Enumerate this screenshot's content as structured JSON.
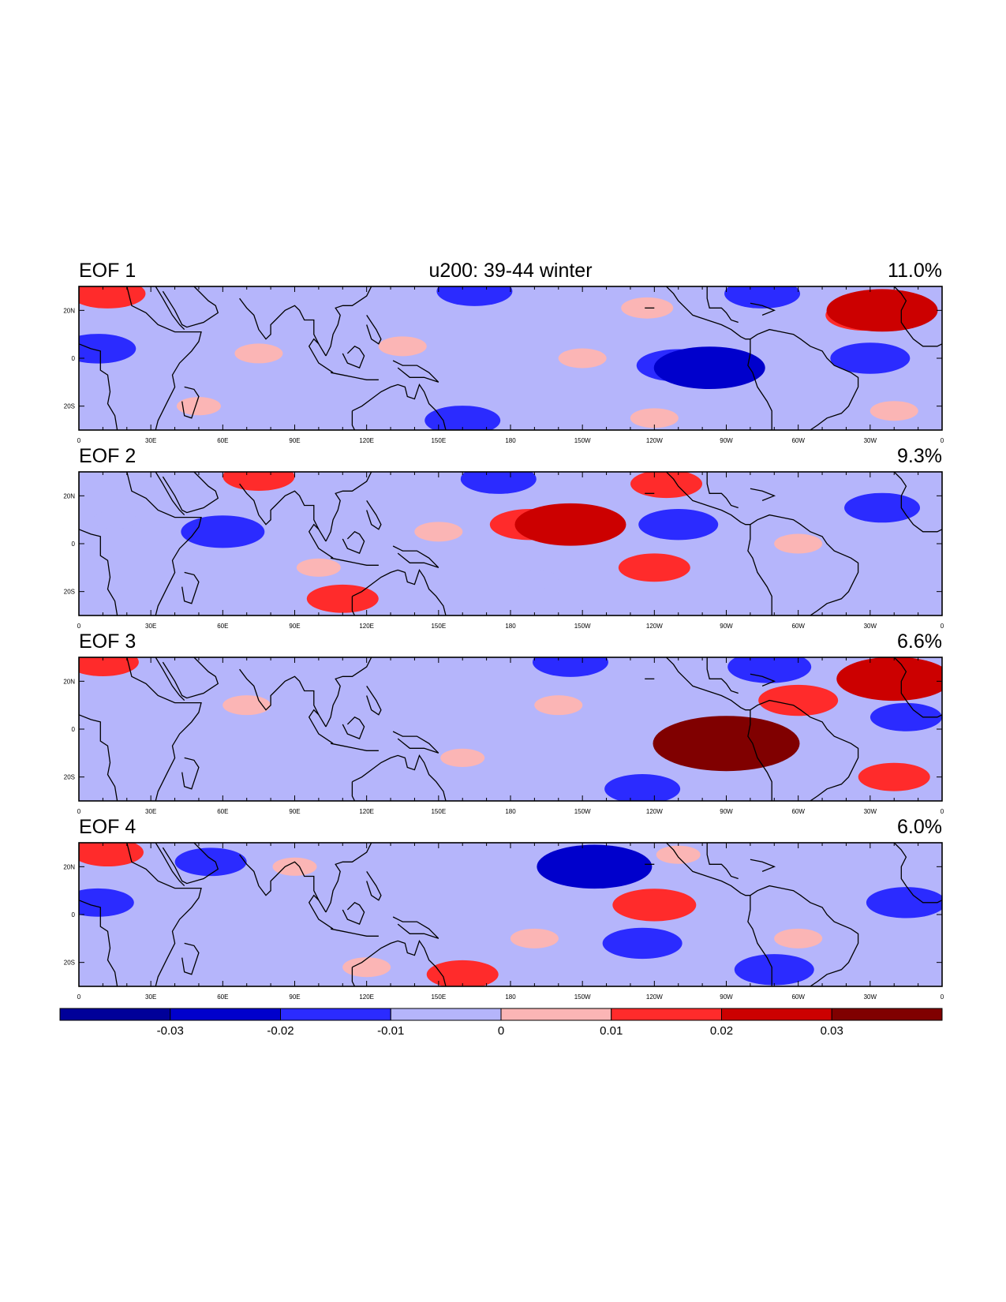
{
  "chart_data": {
    "type": "heatmap",
    "title": "u200: 39-44 winter",
    "panels": [
      {
        "label": "EOF 1",
        "variance": "11.0%",
        "anomalies": [
          {
            "lon": 12,
            "lat": 27,
            "value": 0.012
          },
          {
            "lon": 8,
            "lat": 4,
            "value": -0.012
          },
          {
            "lon": 75,
            "lat": 2,
            "value": 0.005
          },
          {
            "lon": 135,
            "lat": 5,
            "value": 0.005
          },
          {
            "lon": 165,
            "lat": 28,
            "value": -0.012
          },
          {
            "lon": 210,
            "lat": 0,
            "value": 0.005
          },
          {
            "lon": 250,
            "lat": -3,
            "value": -0.014
          },
          {
            "lon": 263,
            "lat": -4,
            "value": -0.021
          },
          {
            "lon": 237,
            "lat": 21,
            "value": 0.006
          },
          {
            "lon": 285,
            "lat": 27,
            "value": -0.012
          },
          {
            "lon": 328,
            "lat": 18,
            "value": 0.013
          },
          {
            "lon": 335,
            "lat": 20,
            "value": 0.021
          },
          {
            "lon": 330,
            "lat": 0,
            "value": -0.013
          },
          {
            "lon": 160,
            "lat": -26,
            "value": -0.012
          },
          {
            "lon": 240,
            "lat": -25,
            "value": 0.005
          },
          {
            "lon": 340,
            "lat": -22,
            "value": 0.005
          },
          {
            "lon": 50,
            "lat": -20,
            "value": 0.004
          }
        ]
      },
      {
        "label": "EOF 2",
        "variance": "9.3%",
        "anomalies": [
          {
            "lon": 60,
            "lat": 5,
            "value": -0.014
          },
          {
            "lon": 75,
            "lat": 28,
            "value": 0.011
          },
          {
            "lon": 110,
            "lat": -23,
            "value": 0.011
          },
          {
            "lon": 188,
            "lat": 8,
            "value": 0.013
          },
          {
            "lon": 205,
            "lat": 8,
            "value": 0.021
          },
          {
            "lon": 240,
            "lat": -10,
            "value": 0.011
          },
          {
            "lon": 245,
            "lat": 25,
            "value": 0.011
          },
          {
            "lon": 250,
            "lat": 8,
            "value": -0.013
          },
          {
            "lon": 175,
            "lat": 27,
            "value": -0.012
          },
          {
            "lon": 335,
            "lat": 15,
            "value": -0.012
          },
          {
            "lon": 150,
            "lat": 5,
            "value": 0.005
          },
          {
            "lon": 300,
            "lat": 0,
            "value": 0.005
          },
          {
            "lon": 100,
            "lat": -10,
            "value": 0.004
          },
          {
            "lon": 15,
            "lat": 10,
            "value": -0.004
          },
          {
            "lon": 190,
            "lat": -15,
            "value": -0.005
          }
        ]
      },
      {
        "label": "EOF 3",
        "variance": "6.6%",
        "anomalies": [
          {
            "lon": 10,
            "lat": 28,
            "value": 0.011
          },
          {
            "lon": 205,
            "lat": 28,
            "value": -0.012
          },
          {
            "lon": 288,
            "lat": 26,
            "value": -0.014
          },
          {
            "lon": 265,
            "lat": -3,
            "value": 0.014
          },
          {
            "lon": 268,
            "lat": -5,
            "value": 0.024
          },
          {
            "lon": 270,
            "lat": -6,
            "value": 0.03
          },
          {
            "lon": 300,
            "lat": 12,
            "value": 0.013
          },
          {
            "lon": 335,
            "lat": 20,
            "value": 0.014
          },
          {
            "lon": 340,
            "lat": 21,
            "value": 0.022
          },
          {
            "lon": 345,
            "lat": 5,
            "value": -0.011
          },
          {
            "lon": 340,
            "lat": -20,
            "value": 0.011
          },
          {
            "lon": 235,
            "lat": -25,
            "value": -0.012
          },
          {
            "lon": 200,
            "lat": 10,
            "value": 0.005
          },
          {
            "lon": 70,
            "lat": 10,
            "value": 0.005
          },
          {
            "lon": 160,
            "lat": -12,
            "value": 0.004
          },
          {
            "lon": 110,
            "lat": -15,
            "value": -0.004
          }
        ]
      },
      {
        "label": "EOF 4",
        "variance": "6.0%",
        "anomalies": [
          {
            "lon": 210,
            "lat": 18,
            "value": -0.013
          },
          {
            "lon": 215,
            "lat": 20,
            "value": -0.022
          },
          {
            "lon": 240,
            "lat": 4,
            "value": 0.014
          },
          {
            "lon": 235,
            "lat": -12,
            "value": -0.013
          },
          {
            "lon": 290,
            "lat": -23,
            "value": -0.013
          },
          {
            "lon": 345,
            "lat": 5,
            "value": -0.013
          },
          {
            "lon": 160,
            "lat": -25,
            "value": 0.011
          },
          {
            "lon": 55,
            "lat": 22,
            "value": -0.011
          },
          {
            "lon": 12,
            "lat": 26,
            "value": 0.011
          },
          {
            "lon": 8,
            "lat": 5,
            "value": -0.011
          },
          {
            "lon": 120,
            "lat": -22,
            "value": 0.005
          },
          {
            "lon": 190,
            "lat": -10,
            "value": 0.005
          },
          {
            "lon": 300,
            "lat": -10,
            "value": 0.005
          },
          {
            "lon": 90,
            "lat": 20,
            "value": 0.004
          },
          {
            "lon": 250,
            "lat": 25,
            "value": 0.004
          }
        ]
      }
    ],
    "lon_ticks": [
      "0",
      "30E",
      "60E",
      "90E",
      "120E",
      "150E",
      "180",
      "150W",
      "120W",
      "90W",
      "60W",
      "30W",
      "0"
    ],
    "lat_ticks": [
      "20N",
      "0",
      "20S"
    ],
    "lat_tick_values": [
      20,
      0,
      -20
    ],
    "lat_range": [
      -30,
      30
    ],
    "lon_range": [
      0,
      360
    ],
    "colorbar": {
      "levels": [
        "-0.03",
        "-0.02",
        "-0.01",
        "0",
        "0.01",
        "0.02",
        "0.03"
      ],
      "colors": [
        "#000099",
        "#0000cc",
        "#2b2bff",
        "#b5b5fb",
        "#fbb5b5",
        "#ff2b2b",
        "#cc0000",
        "#800000"
      ]
    }
  }
}
